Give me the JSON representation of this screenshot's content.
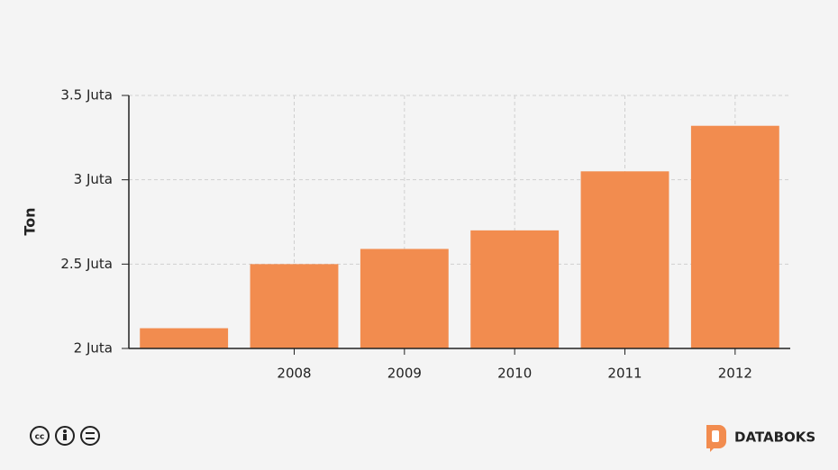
{
  "chart_data": {
    "type": "bar",
    "y_label": "Ton",
    "categories": [
      null,
      "2008",
      "2009",
      "2010",
      "2011",
      "2012"
    ],
    "values": [
      2120000,
      2500000,
      2590000,
      2700000,
      3050000,
      3320000
    ],
    "color": "#f28c4f",
    "ylim": [
      2000000,
      3500000
    ],
    "yticks": [
      {
        "value": 2000000,
        "label": "2 Juta"
      },
      {
        "value": 2500000,
        "label": "2.5 Juta"
      },
      {
        "value": 3000000,
        "label": "3 Juta"
      },
      {
        "value": 3500000,
        "label": "3.5 Juta"
      }
    ],
    "grid": true
  },
  "footer": {
    "brand": "DATABOKS"
  }
}
